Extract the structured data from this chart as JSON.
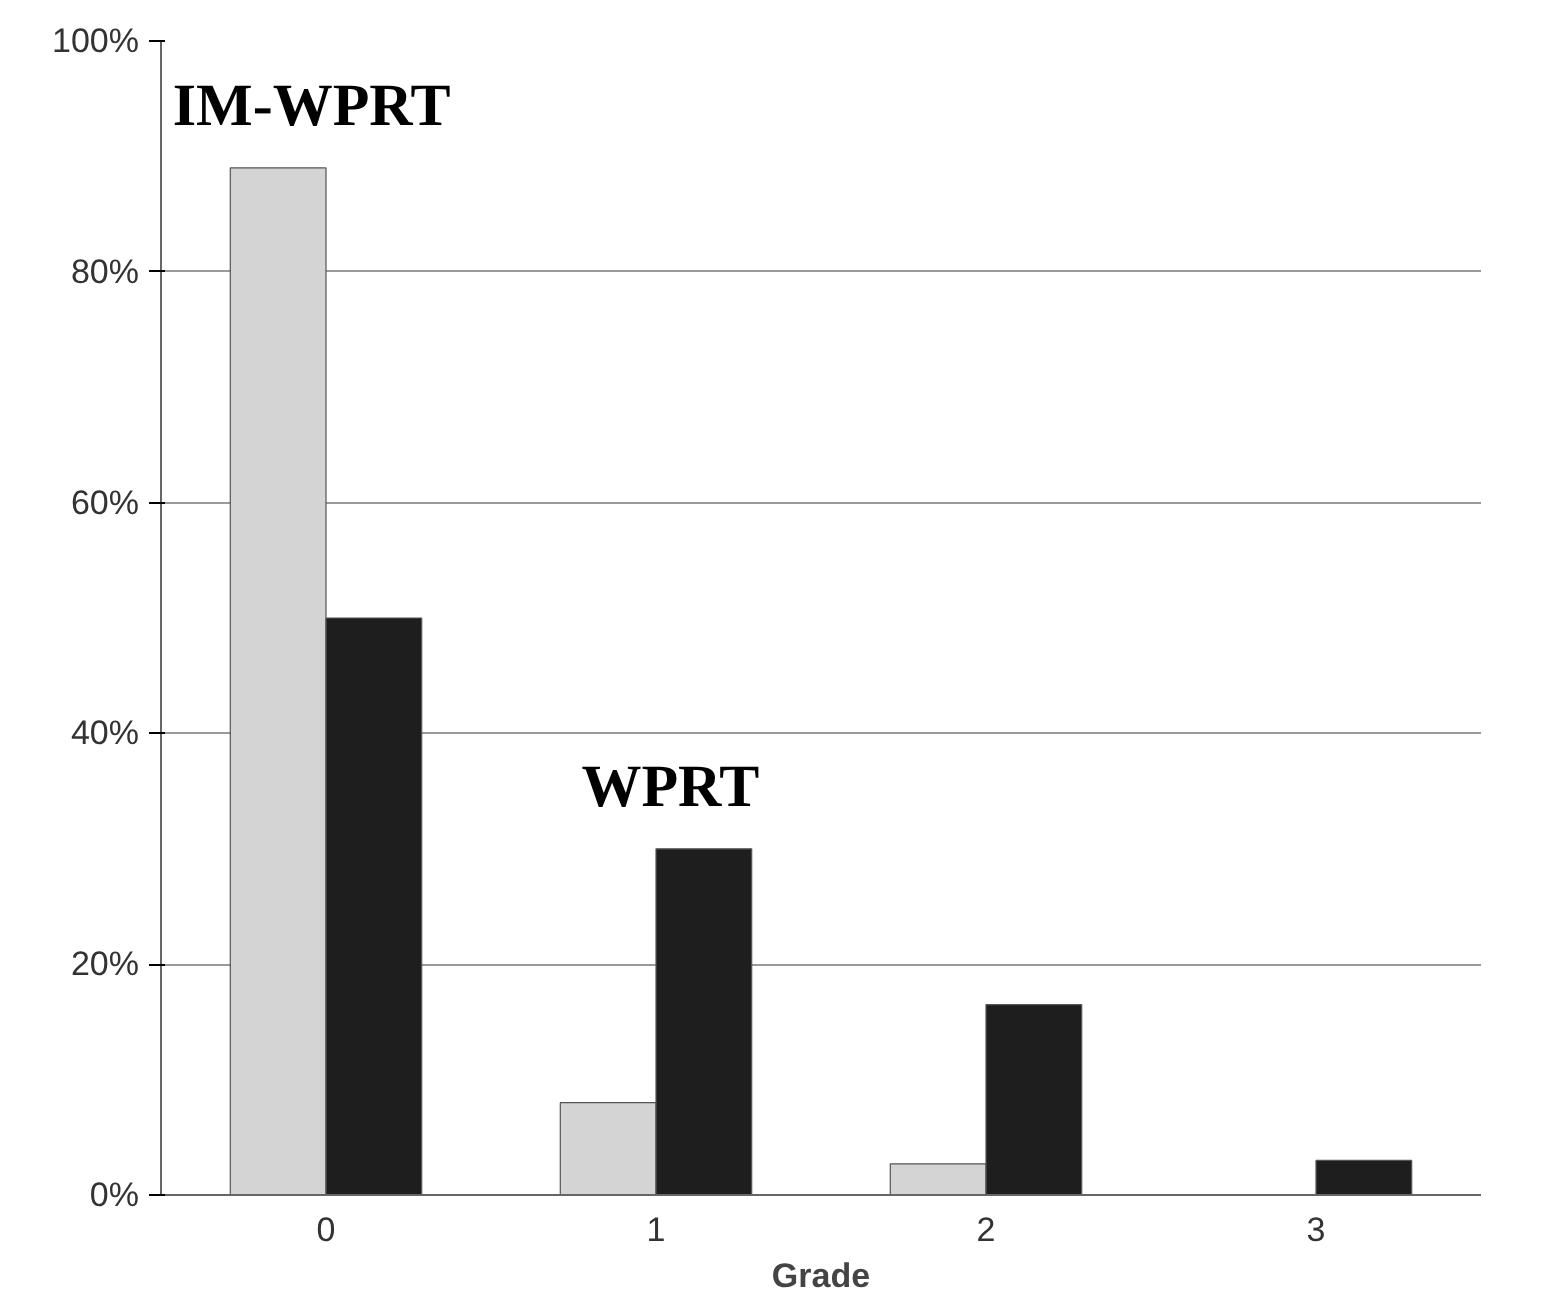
{
  "chart_data": {
    "type": "bar",
    "xlabel": "Grade",
    "categories": [
      "0",
      "1",
      "2",
      "3"
    ],
    "series": [
      {
        "color": "#d4d4d4",
        "values": [
          89,
          8,
          2.7,
          0
        ]
      },
      {
        "color": "#1e1e1e",
        "values": [
          50,
          30,
          16.5,
          3
        ]
      }
    ],
    "ylim": [
      0,
      100
    ],
    "yticks": [
      {
        "value": 0,
        "label": "0%"
      },
      {
        "value": 20,
        "label": "20%"
      },
      {
        "value": 40,
        "label": "40%"
      },
      {
        "value": 60,
        "label": "60%"
      },
      {
        "value": 80,
        "label": "80%"
      },
      {
        "value": 100,
        "label": "100%"
      }
    ],
    "grid": "y",
    "annotations": [
      "IM-WPRT",
      "WPRT"
    ]
  }
}
